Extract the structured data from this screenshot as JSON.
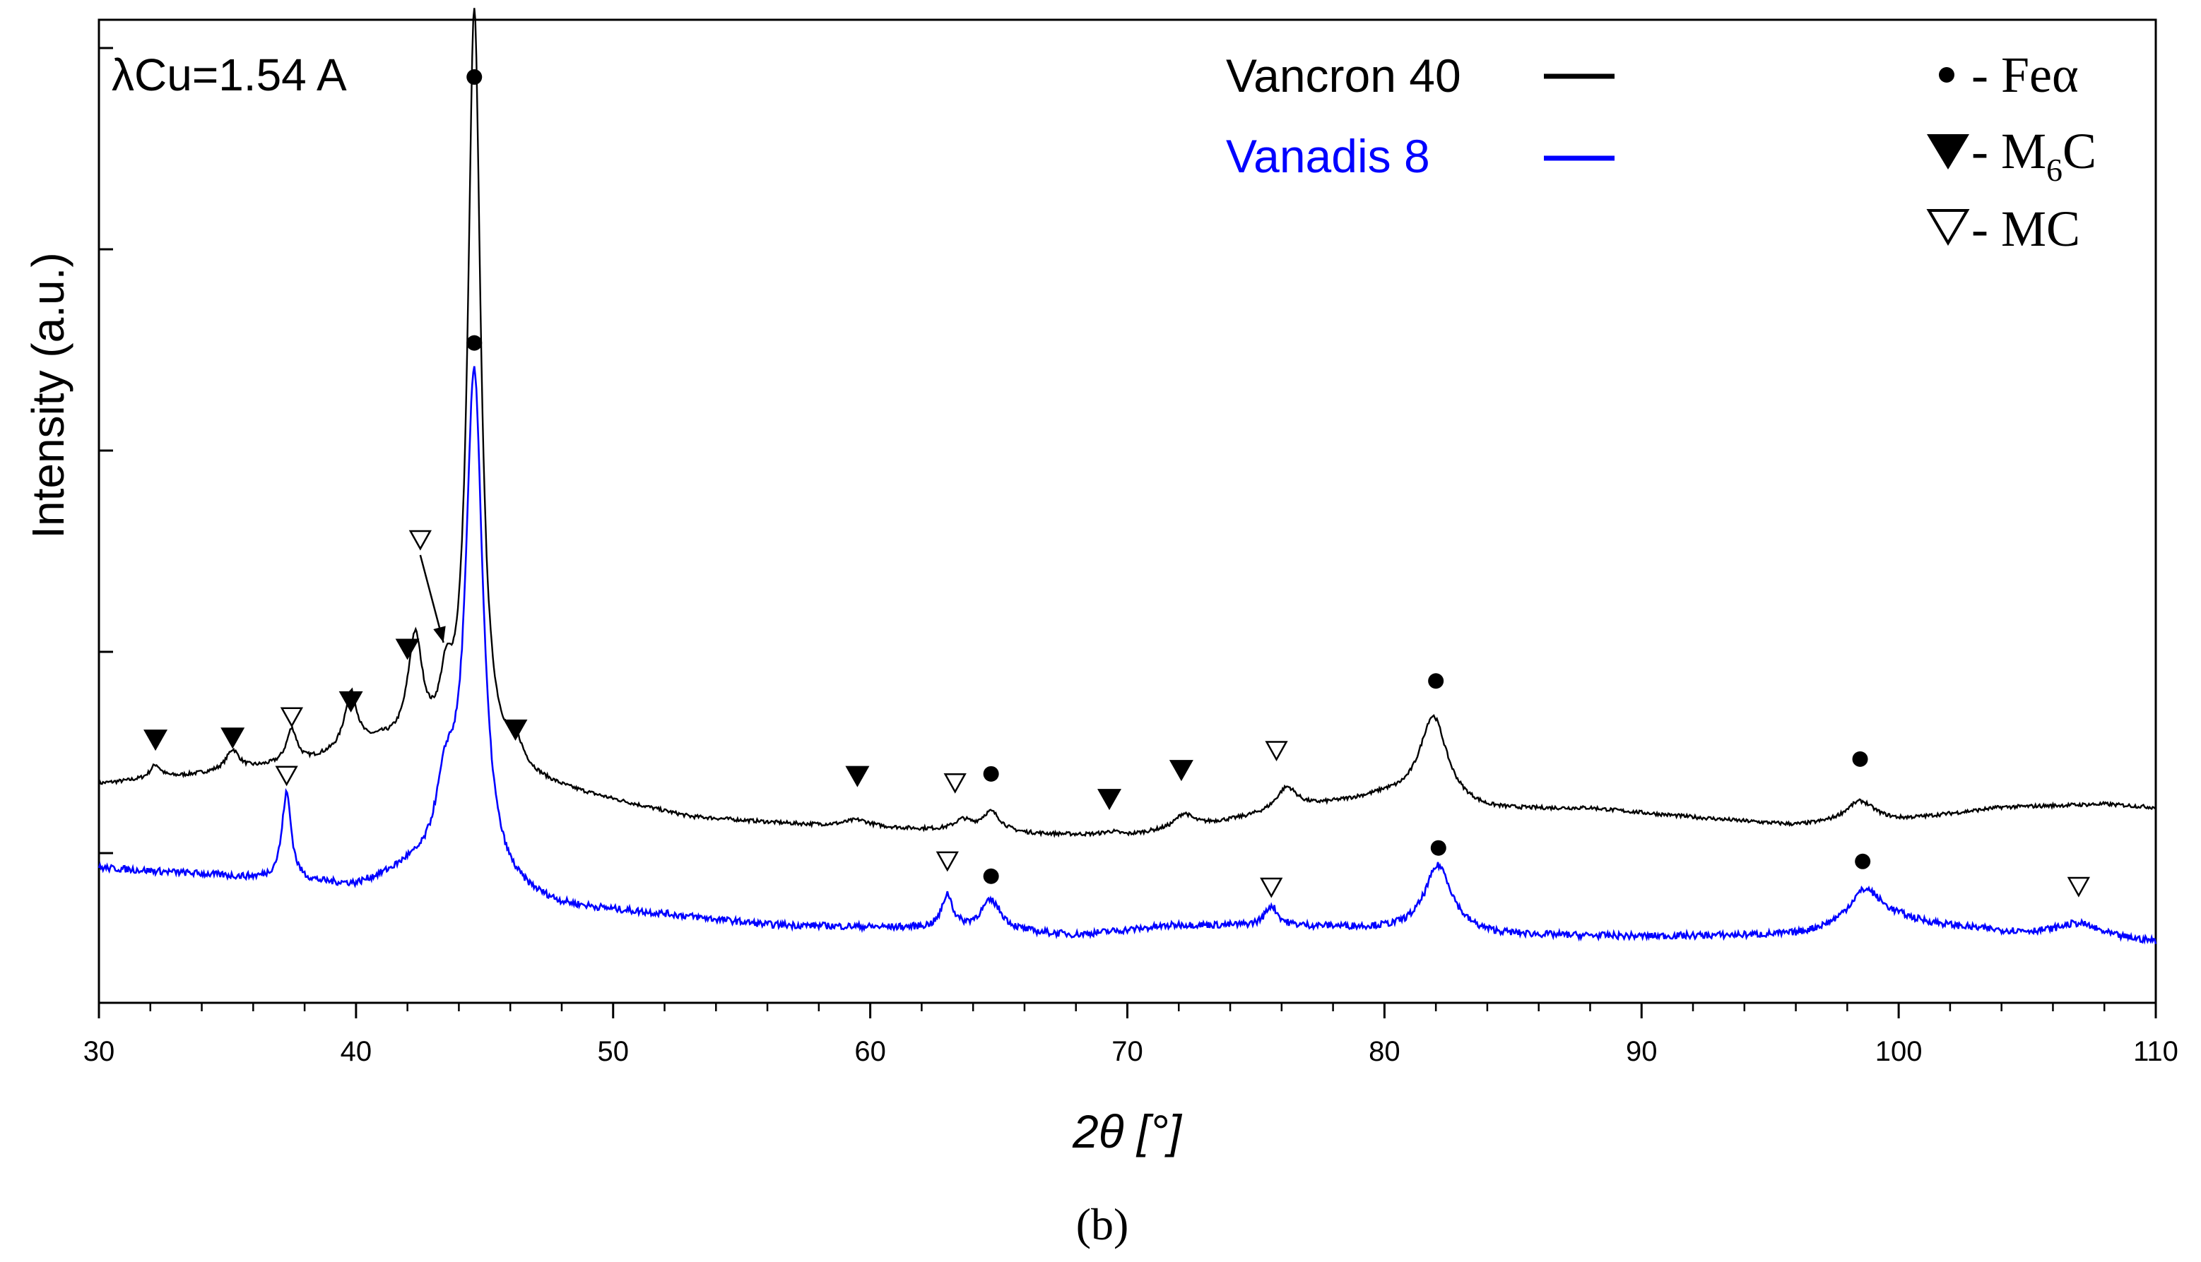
{
  "chart_data": {
    "type": "line",
    "title": "",
    "wavelength_label": "λCu=1.54 A",
    "xlabel": "2θ [°]",
    "ylabel": "Intensity (a.u.)",
    "xlim": [
      30,
      110
    ],
    "ylim": [
      0,
      100
    ],
    "xticks": [
      30,
      40,
      50,
      60,
      70,
      80,
      90,
      100,
      110
    ],
    "yticks_unlabeled": 5,
    "panel_label": "(b)",
    "series": [
      {
        "name": "Vancron 40",
        "color": "#000000",
        "baseline": [
          [
            30,
            24.5
          ],
          [
            33,
            25.5
          ],
          [
            38,
            27.5
          ],
          [
            41,
            30
          ],
          [
            48,
            23.5
          ],
          [
            53,
            19.5
          ],
          [
            57,
            18.5
          ],
          [
            63,
            17.5
          ],
          [
            66,
            17
          ],
          [
            70,
            16.8
          ],
          [
            74,
            19
          ],
          [
            78,
            21.5
          ],
          [
            80,
            22.5
          ],
          [
            84,
            20.5
          ],
          [
            88,
            20.8
          ],
          [
            92,
            19.5
          ],
          [
            96,
            18.3
          ],
          [
            100,
            19
          ],
          [
            104,
            21
          ],
          [
            108,
            21.5
          ],
          [
            110,
            21
          ]
        ],
        "peaks": [
          [
            32.2,
            2,
            0.25
          ],
          [
            35.2,
            3,
            0.3
          ],
          [
            37.5,
            5,
            0.25
          ],
          [
            39.8,
            8.5,
            0.3
          ],
          [
            42.3,
            16,
            0.35
          ],
          [
            43.5,
            8,
            0.3
          ],
          [
            44.6,
            112,
            0.3
          ],
          [
            46.2,
            3.5,
            0.35
          ],
          [
            59.5,
            1,
            0.6
          ],
          [
            63.6,
            1.5,
            0.4
          ],
          [
            64.7,
            3,
            0.45
          ],
          [
            69.4,
            0.5,
            0.4
          ],
          [
            72.2,
            2,
            0.4
          ],
          [
            76.2,
            3.5,
            0.5
          ],
          [
            81.9,
            13,
            0.65
          ],
          [
            98.5,
            3.2,
            0.7
          ]
        ]
      },
      {
        "name": "Vanadis 8",
        "color": "#0000ff",
        "baseline": [
          [
            30,
            12
          ],
          [
            34,
            11
          ],
          [
            37,
            10
          ],
          [
            40,
            9
          ],
          [
            42,
            11
          ],
          [
            48,
            6
          ],
          [
            52,
            5
          ],
          [
            56,
            3.5
          ],
          [
            62,
            3
          ],
          [
            68,
            2
          ],
          [
            72,
            3.5
          ],
          [
            78,
            3.2
          ],
          [
            84,
            2
          ],
          [
            90,
            1.8
          ],
          [
            96,
            2
          ],
          [
            100,
            4
          ],
          [
            104,
            2.5
          ],
          [
            108,
            1.5
          ],
          [
            110,
            1
          ]
        ],
        "peaks": [
          [
            37.3,
            13,
            0.22
          ],
          [
            43.5,
            12,
            0.5
          ],
          [
            44.6,
            75.5,
            0.4
          ],
          [
            63.0,
            5,
            0.25
          ],
          [
            64.7,
            4.5,
            0.5
          ],
          [
            75.6,
            3,
            0.3
          ],
          [
            82.1,
            10,
            0.65
          ],
          [
            98.7,
            5.5,
            0.8
          ],
          [
            107,
            2,
            1.0
          ]
        ]
      }
    ],
    "legend": [
      {
        "label": "Vancron 40",
        "color": "#000000"
      },
      {
        "label": "Vanadis 8",
        "color": "#0000ff"
      }
    ],
    "phase_legend": [
      {
        "marker": "circle",
        "label": "- Feα"
      },
      {
        "marker": "triangle-filled",
        "label": "- M",
        "sub": "6",
        "after": "C"
      },
      {
        "marker": "triangle-open",
        "label": "- MC"
      }
    ],
    "annotations": [
      {
        "phase": "circle",
        "x": 44.6,
        "y": 129.5
      },
      {
        "phase": "circle",
        "x": 44.6,
        "y": 90
      },
      {
        "phase": "circle",
        "x": 64.7,
        "y": 26
      },
      {
        "phase": "circle",
        "x": 82.0,
        "y": 39.8
      },
      {
        "phase": "circle",
        "x": 98.5,
        "y": 28.2
      },
      {
        "phase": "circle",
        "x": 64.7,
        "y": 10.8
      },
      {
        "phase": "circle",
        "x": 82.1,
        "y": 15
      },
      {
        "phase": "circle",
        "x": 98.6,
        "y": 13
      },
      {
        "phase": "triangle-filled",
        "x": 32.2,
        "y": 31
      },
      {
        "phase": "triangle-filled",
        "x": 35.2,
        "y": 31.3
      },
      {
        "phase": "triangle-filled",
        "x": 39.8,
        "y": 36.7
      },
      {
        "phase": "triangle-filled",
        "x": 42.0,
        "y": 44.5
      },
      {
        "phase": "triangle-filled",
        "x": 46.2,
        "y": 32.5
      },
      {
        "phase": "triangle-filled",
        "x": 59.5,
        "y": 25.6
      },
      {
        "phase": "triangle-filled",
        "x": 69.3,
        "y": 22.2
      },
      {
        "phase": "triangle-filled",
        "x": 72.1,
        "y": 26.5
      },
      {
        "phase": "triangle-open",
        "x": 37.5,
        "y": 34.5
      },
      {
        "phase": "triangle-open",
        "x": 42.5,
        "y": 60.8
      },
      {
        "phase": "triangle-open",
        "x": 63.3,
        "y": 24.7
      },
      {
        "phase": "triangle-open",
        "x": 75.8,
        "y": 29.5
      },
      {
        "phase": "triangle-open",
        "x": 37.3,
        "y": 25.8
      },
      {
        "phase": "triangle-open",
        "x": 63.0,
        "y": 13.1
      },
      {
        "phase": "triangle-open",
        "x": 75.6,
        "y": 9.2
      },
      {
        "phase": "triangle-open",
        "x": 107.0,
        "y": 9.3
      }
    ],
    "arrow": {
      "from": [
        42.5,
        58.5
      ],
      "to": [
        43.4,
        45.5
      ]
    }
  }
}
